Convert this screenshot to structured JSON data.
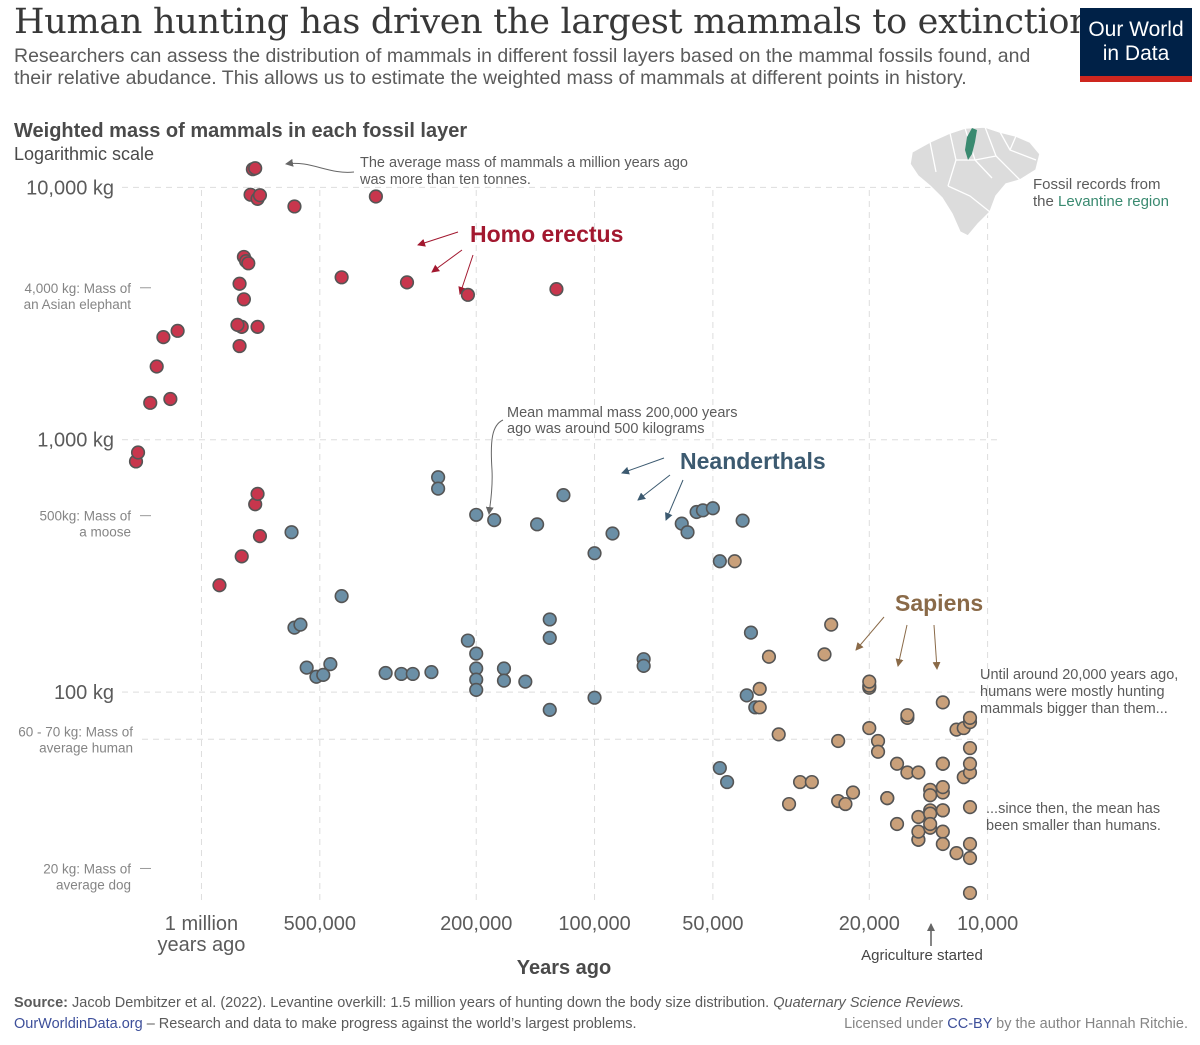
{
  "title": "Human hunting has driven the largest mammals to extinction",
  "subtitle": "Researchers can assess the distribution of mammals in different fossil layers based on the mammal fossils found, and their relative abudance. This allows us to estimate the weighted mass of mammals at different points in history.",
  "logo": {
    "line1": "Our World",
    "line2": "in Data"
  },
  "colors": {
    "homo_erectus": "#c8364d",
    "neanderthals": "#6b8fa6",
    "sapiens": "#c9a07a",
    "ancient_accent": "#a2182f",
    "neander_accent": "#3c5a70",
    "sapiens_accent": "#8a6a48",
    "levant": "#3a8a70"
  },
  "inset_map": {
    "caption_line1": "Fossil records from",
    "caption_line2_prefix": "the",
    "caption_line2_highlight": "Levantine region"
  },
  "chart_data": {
    "type": "scatter",
    "title": "Weighted mass of mammals in each fossil layer",
    "subtitle": "Logarithmic scale",
    "xlabel": "Years ago",
    "x_scale": "log",
    "x_reversed": true,
    "xlim": [
      1520000,
      9300
    ],
    "y_scale": "log",
    "ylim": [
      15,
      12600
    ],
    "x_ticks": [
      {
        "value": 1000000,
        "line1": "1 million",
        "line2": "years ago"
      },
      {
        "value": 500000,
        "line1": "500,000",
        "line2": ""
      },
      {
        "value": 200000,
        "line1": "200,000",
        "line2": ""
      },
      {
        "value": 100000,
        "line1": "100,000",
        "line2": ""
      },
      {
        "value": 50000,
        "line1": "50,000",
        "line2": ""
      },
      {
        "value": 20000,
        "line1": "20,000",
        "line2": ""
      },
      {
        "value": 10000,
        "line1": "10,000",
        "line2": ""
      }
    ],
    "y_ticks": [
      {
        "value": 10000,
        "label": "10,000 kg"
      },
      {
        "value": 1000,
        "label": "1,000 kg"
      },
      {
        "value": 100,
        "label": "100 kg"
      }
    ],
    "reference_labels": [
      {
        "value": 4000,
        "line1": "4,000 kg: Mass of",
        "line2": "an Asian elephant"
      },
      {
        "value": 500,
        "line1": "500kg: Mass of",
        "line2": "a moose"
      },
      {
        "value": 65,
        "line1": "60 - 70 kg: Mass of",
        "line2": "average human"
      },
      {
        "value": 20,
        "line1": "20 kg: Mass of",
        "line2": "average dog"
      }
    ],
    "series": [
      {
        "name": "Homo erectus",
        "color": "#c8364d",
        "points": [
          [
            1500000,
            820
          ],
          [
            1450000,
            890
          ],
          [
            1350000,
            1400
          ],
          [
            1300000,
            1950
          ],
          [
            1250000,
            2550
          ],
          [
            1200000,
            1450
          ],
          [
            1150000,
            2700
          ],
          [
            740000,
            11800
          ],
          [
            730000,
            11900
          ],
          [
            750000,
            9350
          ],
          [
            720000,
            9000
          ],
          [
            710000,
            9300
          ],
          [
            780000,
            5300
          ],
          [
            770000,
            5100
          ],
          [
            760000,
            5000
          ],
          [
            800000,
            4150
          ],
          [
            780000,
            3600
          ],
          [
            790000,
            2800
          ],
          [
            810000,
            2850
          ],
          [
            800000,
            2350
          ],
          [
            720000,
            2800
          ],
          [
            900000,
            265
          ],
          [
            790000,
            345
          ],
          [
            730000,
            555
          ],
          [
            720000,
            610
          ],
          [
            710000,
            415
          ],
          [
            580000,
            8400
          ],
          [
            440000,
            4400
          ],
          [
            360000,
            9200
          ],
          [
            300000,
            4200
          ],
          [
            210000,
            3750
          ],
          [
            125000,
            3950
          ]
        ]
      },
      {
        "name": "Neanderthals",
        "color": "#6b8fa6",
        "points": [
          [
            590000,
            430
          ],
          [
            580000,
            180
          ],
          [
            540000,
            125
          ],
          [
            560000,
            185
          ],
          [
            510000,
            115
          ],
          [
            490000,
            117
          ],
          [
            470000,
            129
          ],
          [
            440000,
            240
          ],
          [
            340000,
            119
          ],
          [
            310000,
            118
          ],
          [
            290000,
            118
          ],
          [
            260000,
            120
          ],
          [
            250000,
            710
          ],
          [
            250000,
            640
          ],
          [
            200000,
            504
          ],
          [
            210000,
            160
          ],
          [
            200000,
            142
          ],
          [
            200000,
            124
          ],
          [
            200000,
            112
          ],
          [
            200000,
            102
          ],
          [
            180000,
            480
          ],
          [
            170000,
            124
          ],
          [
            170000,
            111
          ],
          [
            150000,
            110
          ],
          [
            140000,
            462
          ],
          [
            130000,
            194
          ],
          [
            130000,
            164
          ],
          [
            130000,
            85
          ],
          [
            120000,
            603
          ],
          [
            100000,
            355
          ],
          [
            100000,
            95
          ],
          [
            90000,
            425
          ],
          [
            75000,
            135
          ],
          [
            75000,
            127
          ],
          [
            60000,
            465
          ],
          [
            58000,
            430
          ],
          [
            55000,
            517
          ],
          [
            53000,
            525
          ],
          [
            50000,
            535
          ],
          [
            48000,
            50
          ],
          [
            48000,
            330
          ],
          [
            46000,
            44
          ],
          [
            42000,
            478
          ],
          [
            41000,
            97
          ],
          [
            40000,
            172
          ],
          [
            39000,
            87
          ]
        ]
      },
      {
        "name": "Sapiens",
        "color": "#c9a07a",
        "points": [
          [
            44000,
            330
          ],
          [
            38000,
            103
          ],
          [
            38000,
            87
          ],
          [
            36000,
            138
          ],
          [
            34000,
            68
          ],
          [
            32000,
            36
          ],
          [
            30000,
            44
          ],
          [
            28000,
            44
          ],
          [
            26000,
            141
          ],
          [
            25000,
            185
          ],
          [
            24000,
            64
          ],
          [
            24000,
            37
          ],
          [
            23000,
            36
          ],
          [
            22000,
            40
          ],
          [
            20000,
            72
          ],
          [
            20000,
            104
          ],
          [
            20000,
            106
          ],
          [
            20000,
            110
          ],
          [
            19000,
            64
          ],
          [
            19000,
            58
          ],
          [
            18000,
            38
          ],
          [
            18000,
            38
          ],
          [
            17000,
            52
          ],
          [
            17000,
            30
          ],
          [
            16000,
            48
          ],
          [
            16000,
            79
          ],
          [
            16000,
            81
          ],
          [
            15000,
            26
          ],
          [
            15000,
            48
          ],
          [
            15000,
            32
          ],
          [
            15000,
            26
          ],
          [
            15000,
            28
          ],
          [
            14000,
            34
          ],
          [
            14000,
            41
          ],
          [
            14000,
            29
          ],
          [
            14000,
            33
          ],
          [
            14000,
            30
          ],
          [
            14000,
            39
          ],
          [
            13000,
            52
          ],
          [
            13000,
            40
          ],
          [
            13000,
            42
          ],
          [
            13000,
            52
          ],
          [
            13000,
            34
          ],
          [
            13000,
            28
          ],
          [
            13000,
            25
          ],
          [
            13000,
            91
          ],
          [
            13000,
            34
          ],
          [
            12000,
            71
          ],
          [
            12000,
            23
          ],
          [
            11500,
            46
          ],
          [
            11500,
            72
          ],
          [
            11000,
            22
          ],
          [
            11000,
            25
          ],
          [
            10500,
            16
          ],
          [
            10500,
            35
          ],
          [
            10500,
            48
          ],
          [
            10500,
            60
          ],
          [
            10500,
            52
          ],
          [
            10500,
            76
          ],
          [
            10300,
            79
          ]
        ]
      }
    ],
    "annotations": {
      "one_million": {
        "line1": "The average mass of mammals a million years ago",
        "line2": "was more than ten tonnes."
      },
      "homo_erectus": "Homo erectus",
      "two_hundred_k": {
        "line1": "Mean mammal mass 200,000 years",
        "line2": "ago was around 500 kilograms"
      },
      "neanderthals": "Neanderthals",
      "sapiens": "Sapiens",
      "before_20k": {
        "line1": "Until around 20,000 years ago,",
        "line2": "humans were mostly hunting",
        "line3": "mammals bigger than them..."
      },
      "after_20k": {
        "line1": "...since then, the mean has",
        "line2": "been smaller than humans."
      },
      "agriculture": "Agriculture started"
    }
  },
  "footer": {
    "source_label": "Source:",
    "source_text": "Jacob Dembitzer et al. (2022). Levantine overkill: 1.5 million years of hunting down the body size distribution.",
    "source_journal": "Quaternary Science Reviews.",
    "site": "OurWorldinData.org",
    "tagline": "– Research and data to make progress against the world’s largest problems.",
    "license_prefix": "Licensed under",
    "license_link": "CC-BY",
    "license_suffix": "by the author Hannah Ritchie."
  }
}
